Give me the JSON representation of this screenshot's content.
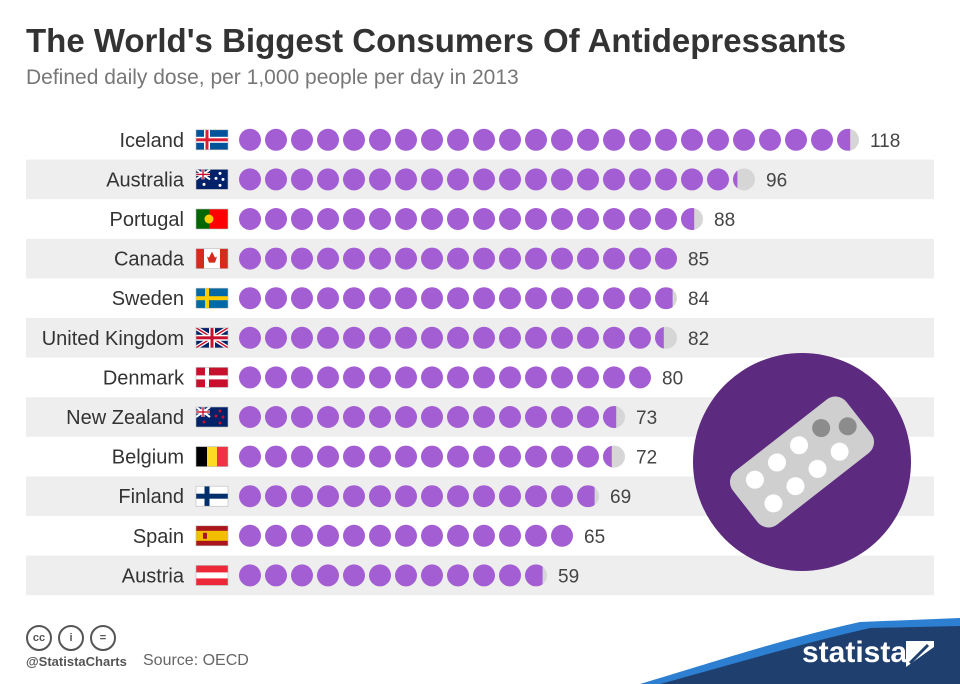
{
  "header": {
    "title": "The World's Biggest Consumers Of Antidepressants",
    "subtitle": "Defined daily dose, per 1,000 people per day in 2013"
  },
  "chart_data": {
    "type": "pictogram-bar",
    "title": "The World's Biggest Consumers Of Antidepressants",
    "subtitle": "Defined daily dose, per 1,000 people per day in 2013",
    "unit_per_icon": 5,
    "categories": [
      "Iceland",
      "Australia",
      "Portugal",
      "Canada",
      "Sweden",
      "United Kingdom",
      "Denmark",
      "New Zealand",
      "Belgium",
      "Finland",
      "Spain",
      "Austria"
    ],
    "values": [
      118,
      96,
      88,
      85,
      84,
      82,
      80,
      73,
      72,
      69,
      65,
      59
    ],
    "value_labels": [
      "118",
      "96",
      "88",
      "85",
      "84",
      "82",
      "80",
      "73",
      "72",
      "69",
      "65",
      "59"
    ],
    "flags": [
      "flag-iceland",
      "flag-australia",
      "flag-portugal",
      "flag-canada",
      "flag-sweden",
      "flag-united-kingdom",
      "flag-denmark",
      "flag-new-zealand",
      "flag-belgium",
      "flag-finland",
      "flag-spain",
      "flag-austria"
    ]
  },
  "colors": {
    "pill": "#a45ed4",
    "pill_empty": "#d6d6d6",
    "stripe": "#eeeeee",
    "badge": "#5c2a7e",
    "brand_band": "#1f3f6e",
    "brand_accent": "#2c7fd1"
  },
  "footer": {
    "license_icons": [
      "cc-icon",
      "by-icon",
      "nd-icon"
    ],
    "license_glyphs": [
      "cc",
      "i",
      "="
    ],
    "handle": "@StatistaCharts",
    "source": "Source: OECD",
    "brand": "statista"
  }
}
